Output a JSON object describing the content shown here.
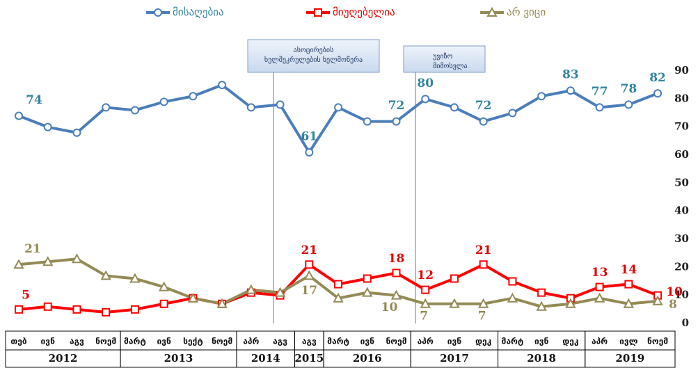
{
  "chart_data": {
    "type": "line",
    "legend": "top",
    "ylim": [
      0,
      90
    ],
    "yticks": [
      0,
      10,
      20,
      30,
      40,
      50,
      60,
      70,
      80,
      90
    ],
    "year_groups": [
      {
        "label": "2012",
        "months": [
          "თებ",
          "ივნ",
          "აგვ",
          "ნოემ"
        ]
      },
      {
        "label": "2013",
        "months": [
          "მარტ",
          "ივნ",
          "სექტ",
          "ნოემ"
        ]
      },
      {
        "label": "2014",
        "months": [
          "აპრ",
          "აგვ"
        ]
      },
      {
        "label": "2015",
        "months": [
          "აგვ"
        ]
      },
      {
        "label": "2016",
        "months": [
          "მარტ",
          "ივნ",
          "ნოემ"
        ]
      },
      {
        "label": "2017",
        "months": [
          "აპრ",
          "ივნ",
          "დეკ"
        ]
      },
      {
        "label": "2018",
        "months": [
          "მარტ",
          "ივნ",
          "დეკ"
        ]
      },
      {
        "label": "2019",
        "months": [
          "აპრ",
          "ივლ",
          "ნოემ"
        ]
      }
    ],
    "series": [
      {
        "name": "მისაღებია",
        "color": "#4a7ebb",
        "label_color": "#31859c",
        "marker": "circle",
        "values": [
          74,
          70,
          68,
          77,
          76,
          79,
          81,
          85,
          77,
          78,
          61,
          77,
          72,
          72,
          80,
          77,
          72,
          75,
          81,
          83,
          77,
          78,
          82
        ],
        "value_labels": [
          "74",
          null,
          null,
          null,
          null,
          null,
          null,
          null,
          null,
          null,
          "61",
          null,
          null,
          "72",
          "80",
          null,
          "72",
          null,
          null,
          "83",
          "77",
          "78",
          "82"
        ]
      },
      {
        "name": "მიუღებელია",
        "color": "#ff0000",
        "label_color": "#e00000",
        "marker": "square",
        "values": [
          5,
          6,
          5,
          4,
          5,
          7,
          9,
          7,
          11,
          10,
          21,
          14,
          16,
          18,
          12,
          16,
          21,
          15,
          11,
          9,
          13,
          14,
          10
        ],
        "value_labels": [
          "5",
          null,
          null,
          null,
          null,
          null,
          null,
          null,
          null,
          null,
          "21",
          null,
          null,
          "18",
          "12",
          null,
          "21",
          null,
          null,
          null,
          "13",
          "14",
          "10"
        ]
      },
      {
        "name": "არ ვიცი",
        "color": "#948a54",
        "label_color": "#948a54",
        "marker": "triangle",
        "values": [
          21,
          22,
          23,
          17,
          16,
          13,
          9,
          7,
          12,
          11,
          17,
          9,
          11,
          10,
          7,
          7,
          7,
          9,
          6,
          7,
          9,
          7,
          8
        ],
        "value_labels": [
          "21",
          null,
          null,
          null,
          null,
          null,
          null,
          null,
          null,
          null,
          "17",
          null,
          null,
          "10",
          "7",
          null,
          "7",
          null,
          null,
          null,
          null,
          null,
          "8"
        ]
      }
    ],
    "annotations": [
      {
        "lines": [
          "ასოცირების",
          "ხელშეკრულების ხელმოწერა"
        ]
      },
      {
        "lines": [
          "უვიზო",
          "მიმოსვლა"
        ]
      }
    ]
  }
}
